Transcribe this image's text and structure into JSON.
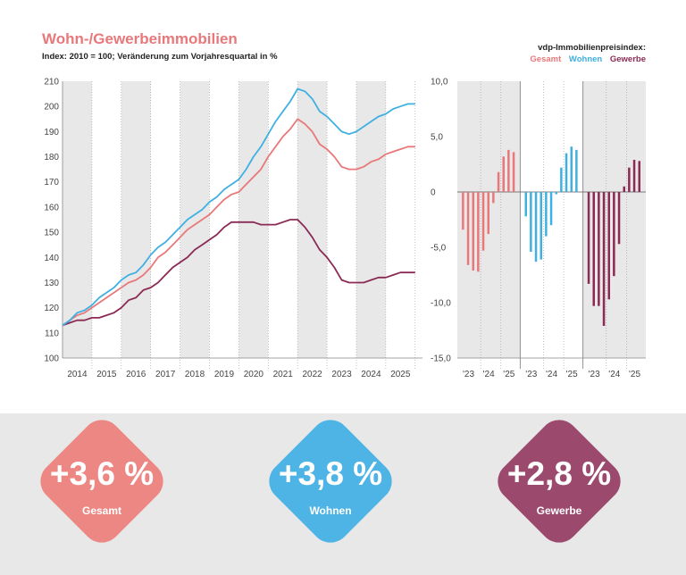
{
  "header": {
    "title": "Wohn-/Gewerbeimmobilien",
    "subtitle": "Index: 2010 = 100; Veränderung zum Vorjahresquartal in %",
    "legend_title": "vdp-Immobilienpreisindex:",
    "legend": [
      {
        "label": "Gesamt",
        "color": "#e8787a"
      },
      {
        "label": "Wohnen",
        "color": "#3fb0e2"
      },
      {
        "label": "Gewerbe",
        "color": "#8b2a55"
      }
    ]
  },
  "chart_data": [
    {
      "type": "line",
      "title": "Wohn-/Gewerbeimmobilien",
      "xlabel": "",
      "ylabel": "Index: 2010 = 100",
      "ylim": [
        100,
        210
      ],
      "yticks": [
        "100",
        "110",
        "120",
        "130",
        "140",
        "150",
        "160",
        "170",
        "180",
        "190",
        "200",
        "210"
      ],
      "xticks": [
        "2014",
        "2015",
        "2016",
        "2017",
        "2018",
        "2019",
        "2020",
        "2021",
        "2022",
        "2023",
        "2024",
        "2025"
      ],
      "x_range": [
        2013.5,
        2025.75
      ],
      "grid": false,
      "shaded_alternate_years": true,
      "series": [
        {
          "name": "Wohnen",
          "color": "#3fb0e2",
          "x": [
            2013.5,
            2013.75,
            2014,
            2014.25,
            2014.5,
            2014.75,
            2015,
            2015.25,
            2015.5,
            2015.75,
            2016,
            2016.25,
            2016.5,
            2016.75,
            2017,
            2017.25,
            2017.5,
            2017.75,
            2018,
            2018.25,
            2018.5,
            2018.75,
            2019,
            2019.25,
            2019.5,
            2019.75,
            2020,
            2020.25,
            2020.5,
            2020.75,
            2021,
            2021.25,
            2021.5,
            2021.75,
            2022,
            2022.25,
            2022.5,
            2022.75,
            2023,
            2023.25,
            2023.5,
            2023.75,
            2024,
            2024.25,
            2024.5,
            2024.75,
            2025,
            2025.25,
            2025.5
          ],
          "values": [
            113,
            115,
            118,
            119,
            121,
            124,
            126,
            128,
            131,
            133,
            134,
            137,
            141,
            144,
            146,
            149,
            152,
            155,
            157,
            159,
            162,
            164,
            167,
            169,
            171,
            175,
            180,
            184,
            189,
            194,
            198,
            202,
            207,
            206,
            203,
            198,
            196,
            193,
            190,
            189,
            190,
            192,
            194,
            196,
            197,
            199,
            200,
            201,
            201
          ]
        },
        {
          "name": "Gesamt",
          "color": "#e8787a",
          "x": [
            2013.5,
            2013.75,
            2014,
            2014.25,
            2014.5,
            2014.75,
            2015,
            2015.25,
            2015.5,
            2015.75,
            2016,
            2016.25,
            2016.5,
            2016.75,
            2017,
            2017.25,
            2017.5,
            2017.75,
            2018,
            2018.25,
            2018.5,
            2018.75,
            2019,
            2019.25,
            2019.5,
            2019.75,
            2020,
            2020.25,
            2020.5,
            2020.75,
            2021,
            2021.25,
            2021.5,
            2021.75,
            2022,
            2022.25,
            2022.5,
            2022.75,
            2023,
            2023.25,
            2023.5,
            2023.75,
            2024,
            2024.25,
            2024.5,
            2024.75,
            2025,
            2025.25,
            2025.5
          ],
          "values": [
            113,
            115,
            117,
            118,
            120,
            122,
            124,
            126,
            128,
            130,
            131,
            133,
            136,
            140,
            142,
            145,
            148,
            151,
            153,
            155,
            157,
            160,
            163,
            165,
            166,
            169,
            172,
            175,
            180,
            184,
            188,
            191,
            195,
            193,
            190,
            185,
            183,
            180,
            176,
            175,
            175,
            176,
            178,
            179,
            181,
            182,
            183,
            184,
            184
          ]
        },
        {
          "name": "Gewerbe",
          "color": "#8b2a55",
          "x": [
            2013.5,
            2013.75,
            2014,
            2014.25,
            2014.5,
            2014.75,
            2015,
            2015.25,
            2015.5,
            2015.75,
            2016,
            2016.25,
            2016.5,
            2016.75,
            2017,
            2017.25,
            2017.5,
            2017.75,
            2018,
            2018.25,
            2018.5,
            2018.75,
            2019,
            2019.25,
            2019.5,
            2019.75,
            2020,
            2020.25,
            2020.5,
            2020.75,
            2021,
            2021.25,
            2021.5,
            2021.75,
            2022,
            2022.25,
            2022.5,
            2022.75,
            2023,
            2023.25,
            2023.5,
            2023.75,
            2024,
            2024.25,
            2024.5,
            2024.75,
            2025,
            2025.25,
            2025.5
          ],
          "values": [
            113,
            114,
            115,
            115,
            116,
            116,
            117,
            118,
            120,
            123,
            124,
            127,
            128,
            130,
            133,
            136,
            138,
            140,
            143,
            145,
            147,
            149,
            152,
            154,
            154,
            154,
            154,
            153,
            153,
            153,
            154,
            155,
            155,
            152,
            148,
            143,
            140,
            136,
            131,
            130,
            130,
            130,
            131,
            132,
            132,
            133,
            134,
            134,
            134
          ]
        }
      ]
    },
    {
      "type": "bar",
      "title": "Veränderung zum Vorjahresquartal in %",
      "ylim": [
        -15,
        10
      ],
      "yticks": [
        "10,0",
        "5,0",
        "0",
        "-5,0",
        "-10,0",
        "-15,0"
      ],
      "ytick_values": [
        10,
        5,
        0,
        -5,
        -10,
        -15
      ],
      "quarters": [
        "Q1 23",
        "Q2 23",
        "Q3 23",
        "Q4 23",
        "Q1 24",
        "Q2 24",
        "Q3 24",
        "Q4 24",
        "Q1 25",
        "Q2 25",
        "Q3 25"
      ],
      "xtick_labels": [
        "'23",
        "'24",
        "'25"
      ],
      "series": [
        {
          "name": "Gesamt",
          "color": "#e8787a",
          "values": [
            -3.4,
            -6.6,
            -7.1,
            -7.2,
            -5.3,
            -3.8,
            -1.0,
            1.8,
            3.2,
            3.8,
            3.6
          ]
        },
        {
          "name": "Wohnen",
          "color": "#3fb0e2",
          "values": [
            -2.2,
            -5.4,
            -6.3,
            -6.1,
            -4.0,
            -3.0,
            -0.2,
            2.2,
            3.5,
            4.1,
            3.8
          ]
        },
        {
          "name": "Gewerbe",
          "color": "#8b2a55",
          "values": [
            -8.3,
            -10.3,
            -10.3,
            -12.1,
            -9.7,
            -7.6,
            -4.7,
            0.5,
            2.2,
            2.9,
            2.8
          ]
        }
      ]
    }
  ],
  "kpis": [
    {
      "value": "+3,6 %",
      "label": "Gesamt",
      "color": "#ec8783"
    },
    {
      "value": "+3,8 %",
      "label": "Wohnen",
      "color": "#4eb4e6"
    },
    {
      "value": "+2,8 %",
      "label": "Gewerbe",
      "color": "#9b4a6e"
    }
  ]
}
